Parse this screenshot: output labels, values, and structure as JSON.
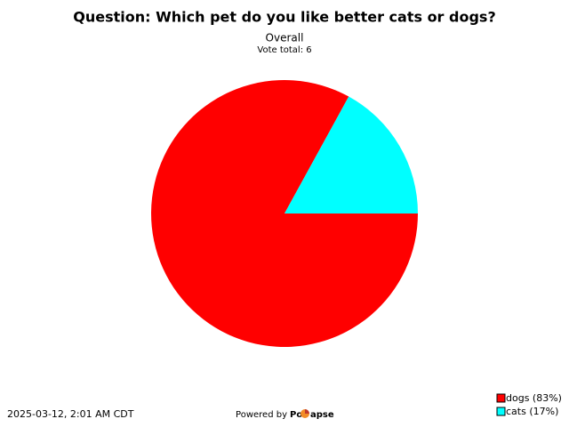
{
  "chart_data": {
    "type": "pie",
    "title": "Question: Which pet do you like better cats or dogs?",
    "subtitle": "Overall",
    "note": "Vote total: 6",
    "categories": [
      "dogs (83%)",
      "cats (17%)"
    ],
    "values": [
      83,
      17
    ],
    "colors": [
      "#ff0000",
      "#00ffff"
    ],
    "legend": "bottom-right"
  },
  "footer": {
    "timestamp": "2025-03-12, 2:01 AM CDT",
    "powered_by": "Powered by",
    "brand_start": "Po",
    "brand_end": "apse"
  }
}
